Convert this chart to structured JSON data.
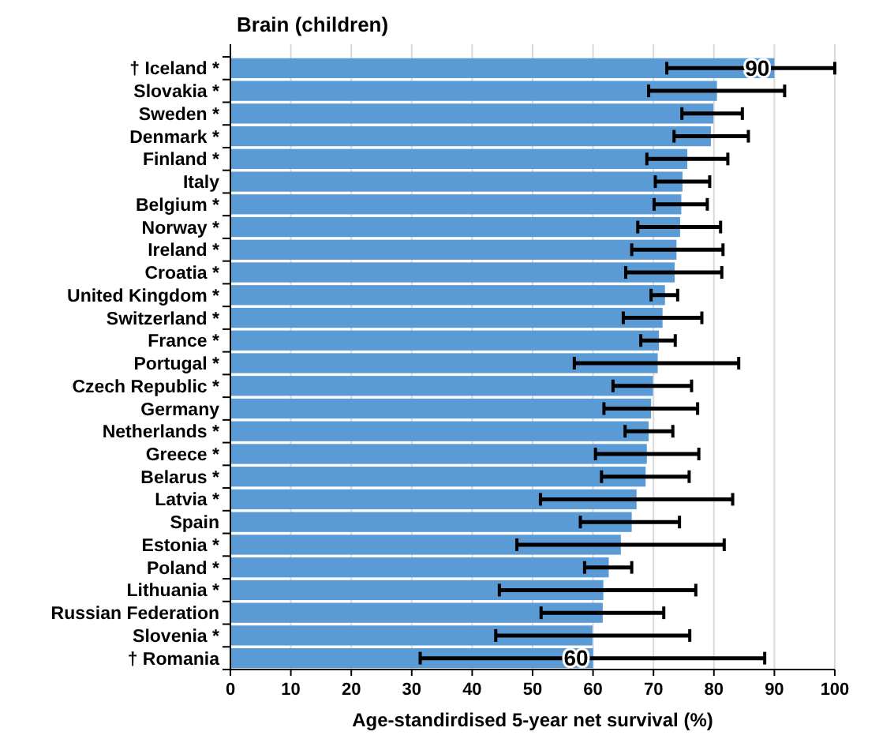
{
  "chart_data": {
    "type": "bar",
    "orientation": "horizontal",
    "title": "Brain (children)",
    "xlabel": "Age-standirdised 5-year net survival (%)",
    "categories": [
      "† Iceland *",
      "Slovakia *",
      "Sweden *",
      "Denmark *",
      "Finland *",
      "Italy",
      "Belgium *",
      "Norway *",
      "Ireland *",
      "Croatia *",
      "United Kingdom *",
      "Switzerland *",
      "France *",
      "Portugal *",
      "Czech Republic *",
      "Germany",
      "Netherlands *",
      "Greece *",
      "Belarus *",
      "Latvia *",
      "Spain",
      "Estonia *",
      "Poland *",
      "Lithuania *",
      "Russian Federation",
      "Slovenia *",
      "† Romania"
    ],
    "values": [
      90,
      80.5,
      79.9,
      79.5,
      75.6,
      74.8,
      74.6,
      74.4,
      73.8,
      73.5,
      71.9,
      71.5,
      70.9,
      70.7,
      69.9,
      69.6,
      69.2,
      68.9,
      68.7,
      67.2,
      66.4,
      64.6,
      62.6,
      61.7,
      61.6,
      59.9,
      60
    ],
    "errors": [
      [
        72.2,
        100
      ],
      [
        69.2,
        91.7
      ],
      [
        74.7,
        84.7
      ],
      [
        73.4,
        85.7
      ],
      [
        68.9,
        82.3
      ],
      [
        70.3,
        79.3
      ],
      [
        70.1,
        78.9
      ],
      [
        67.4,
        81.1
      ],
      [
        66.4,
        81.5
      ],
      [
        65.4,
        81.3
      ],
      [
        69.6,
        74
      ],
      [
        65,
        78
      ],
      [
        67.9,
        73.6
      ],
      [
        56.9,
        84.1
      ],
      [
        63.3,
        76.3
      ],
      [
        61.8,
        77.3
      ],
      [
        65.3,
        73.2
      ],
      [
        60.4,
        77.5
      ],
      [
        61.4,
        75.9
      ],
      [
        51.3,
        83.1
      ],
      [
        57.9,
        74.3
      ],
      [
        47.4,
        81.7
      ],
      [
        58.6,
        66.4
      ],
      [
        44.5,
        77
      ],
      [
        51.4,
        71.7
      ],
      [
        43.9,
        76
      ],
      [
        31.4,
        88.4
      ]
    ],
    "value_labels": [
      "90",
      null,
      null,
      null,
      null,
      null,
      null,
      null,
      null,
      null,
      null,
      null,
      null,
      null,
      null,
      null,
      null,
      null,
      null,
      null,
      null,
      null,
      null,
      null,
      null,
      null,
      "60"
    ],
    "color": "#5b9bd5",
    "xlim": [
      0,
      100
    ],
    "xticks": [
      0,
      10,
      20,
      30,
      40,
      50,
      60,
      70,
      80,
      90,
      100
    ],
    "grid": "x"
  }
}
